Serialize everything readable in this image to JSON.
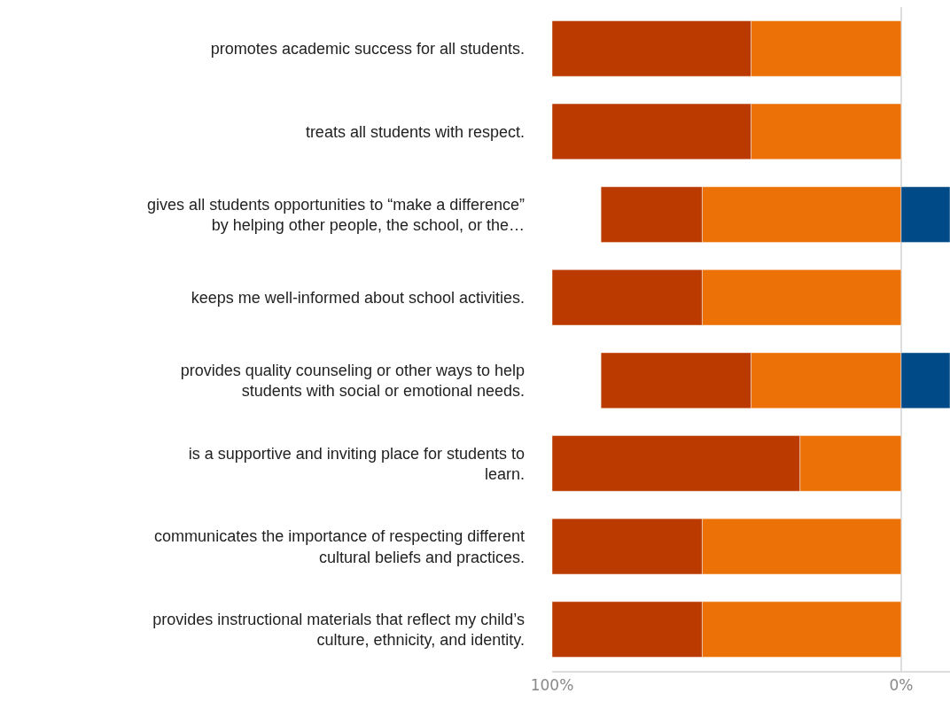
{
  "chart_data": {
    "type": "bar",
    "orientation": "horizontal",
    "stacked": true,
    "categories": [
      "promotes academic success for all students.",
      "treats all students with respect.",
      "gives all students opportunities to “make a difference” by helping other people, the school, or the…",
      "keeps me well-informed about school activities.",
      "provides quality counseling or other ways to help students with social or emotional needs.",
      "is a supportive and inviting place for students to learn.",
      "communicates the importance of respecting different cultural beliefs and practices.",
      "provides instructional materials that reflect my child’s culture, ethnicity, and identity."
    ],
    "series": [
      {
        "color": "#ec7207",
        "values": [
          -43,
          -43,
          -57,
          -57,
          -43,
          -29,
          -57,
          -57
        ]
      },
      {
        "color": "#bb3a00",
        "values": [
          -57,
          -57,
          -29,
          -43,
          -43,
          -71,
          -43,
          -43
        ]
      },
      {
        "color": "#004b87",
        "values": [
          null,
          null,
          14,
          null,
          14,
          null,
          null,
          null
        ]
      }
    ],
    "xlim": [
      -100,
      14
    ],
    "xticks": [
      {
        "value": -100,
        "label": "100%"
      },
      {
        "value": 0,
        "label": "0%"
      }
    ],
    "grid": "x"
  }
}
